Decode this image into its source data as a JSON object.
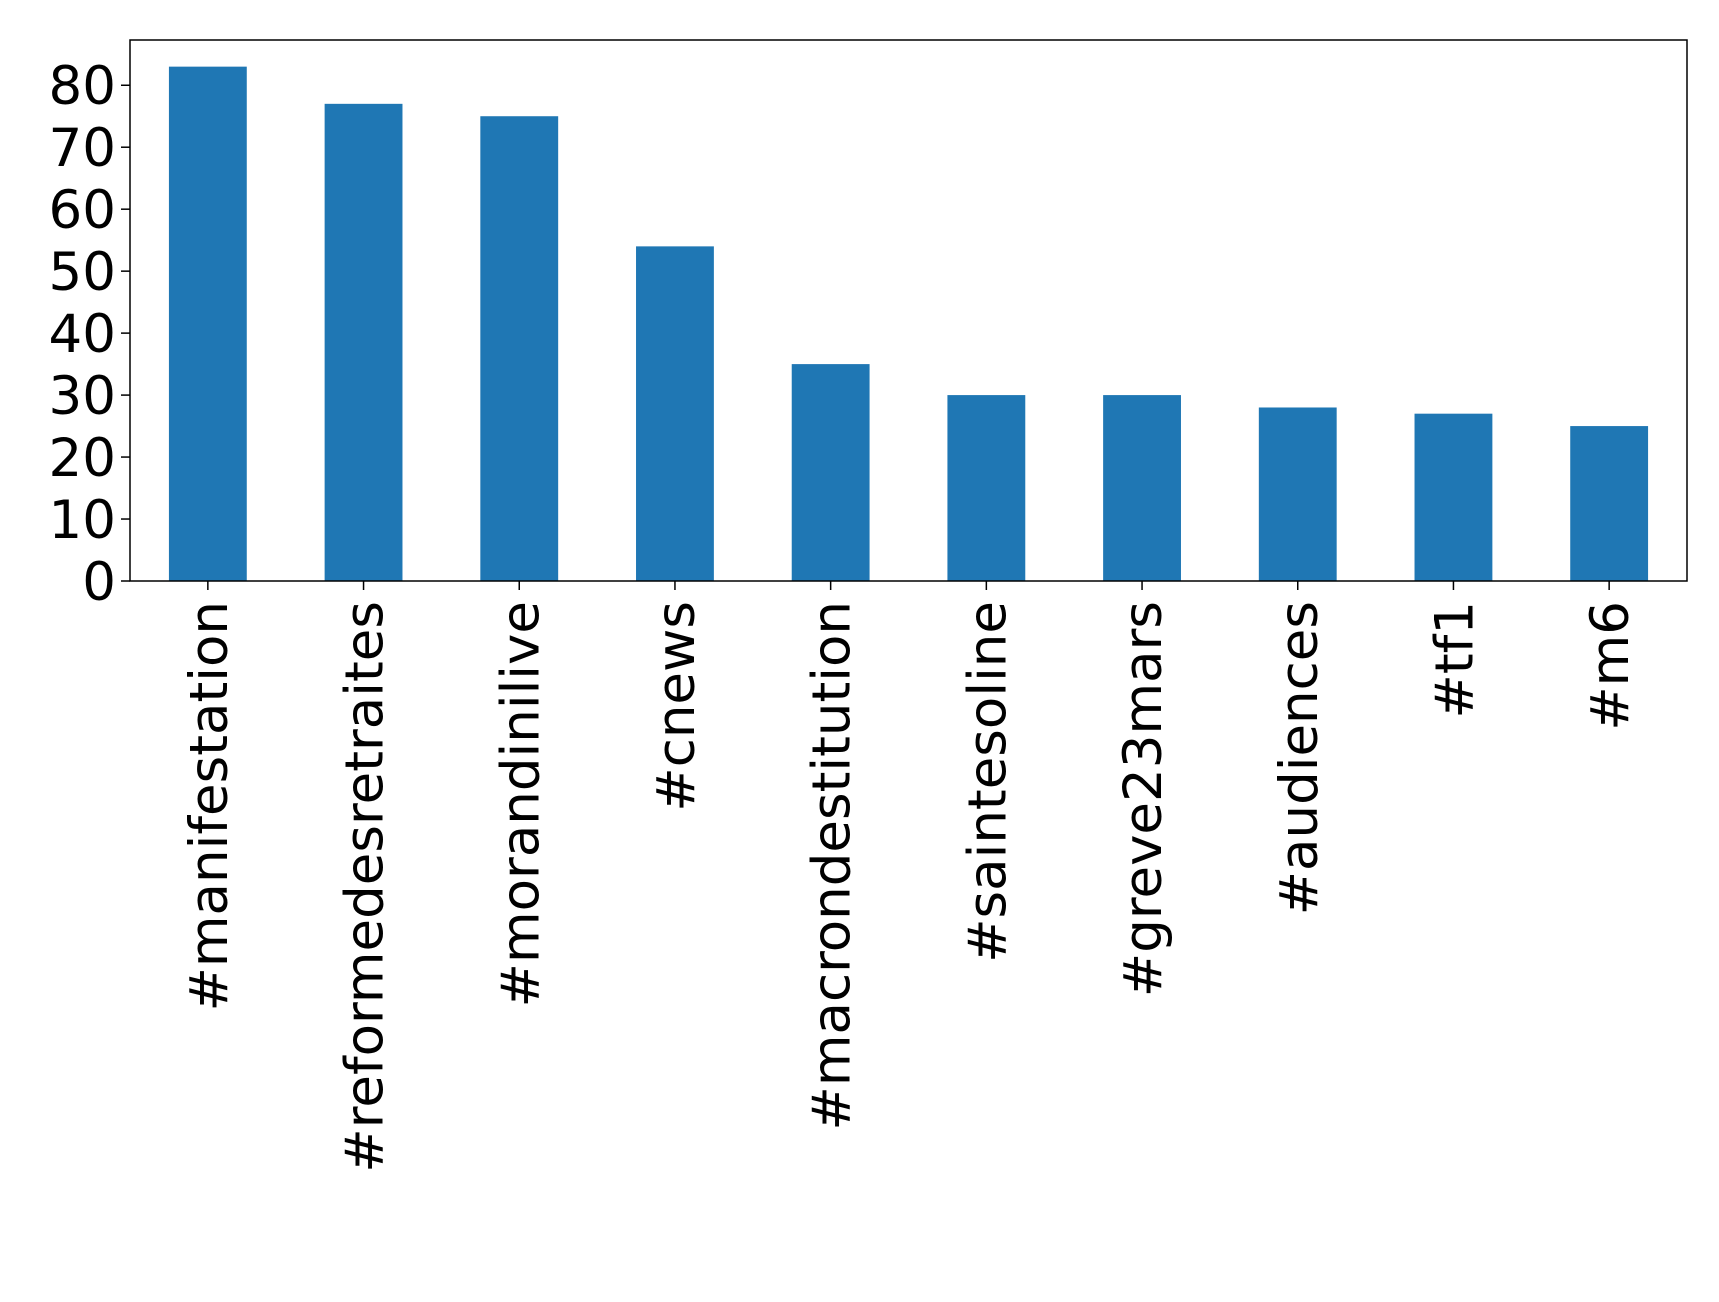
{
  "chart_data": {
    "type": "bar",
    "categories": [
      "#manifestation",
      "#reformedesretraites",
      "#morandinilive",
      "#cnews",
      "#macrondestitution",
      "#saintesoline",
      "#greve23mars",
      "#audiences",
      "#tf1",
      "#m6"
    ],
    "values": [
      83,
      77,
      75,
      54,
      35,
      30,
      30,
      28,
      27,
      25
    ],
    "color": "#1f77b4",
    "ylim": [
      0,
      87.3
    ],
    "yticks": [
      0,
      10,
      20,
      30,
      40,
      50,
      60,
      70,
      80
    ],
    "grid": false
  }
}
